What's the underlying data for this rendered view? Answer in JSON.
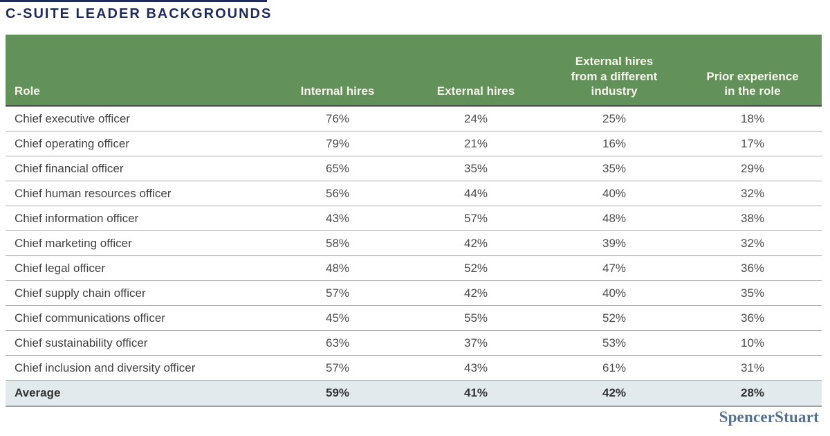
{
  "page_title": "C-SUITE LEADER BACKGROUNDS",
  "brand": {
    "logo_text": "SpencerStuart"
  },
  "colors": {
    "title_navy": "#1f2b5b",
    "header_bg": "#63915a",
    "header_text": "#f7f5ee",
    "average_row_bg": "#e3eaee",
    "row_border": "#a6aeae",
    "logo_color": "#54718e"
  },
  "chart_data": {
    "type": "table",
    "title": "C-SUITE LEADER BACKGROUNDS",
    "unit": "%",
    "columns": [
      "Role",
      "Internal hires",
      "External hires",
      "External hires from a different industry",
      "Prior experience in the role"
    ],
    "rows": [
      {
        "role": "Chief executive officer",
        "values": [
          76,
          24,
          25,
          18
        ]
      },
      {
        "role": "Chief operating officer",
        "values": [
          79,
          21,
          16,
          17
        ]
      },
      {
        "role": "Chief financial officer",
        "values": [
          65,
          35,
          35,
          29
        ]
      },
      {
        "role": "Chief human resources officer",
        "values": [
          56,
          44,
          40,
          32
        ]
      },
      {
        "role": "Chief information officer",
        "values": [
          43,
          57,
          48,
          38
        ]
      },
      {
        "role": "Chief marketing officer",
        "values": [
          58,
          42,
          39,
          32
        ]
      },
      {
        "role": "Chief legal officer",
        "values": [
          48,
          52,
          47,
          36
        ]
      },
      {
        "role": "Chief supply chain officer",
        "values": [
          57,
          42,
          40,
          35
        ]
      },
      {
        "role": "Chief communications officer",
        "values": [
          45,
          55,
          52,
          36
        ]
      },
      {
        "role": "Chief sustainability officer",
        "values": [
          63,
          37,
          53,
          10
        ]
      },
      {
        "role": "Chief inclusion and diversity officer",
        "values": [
          57,
          43,
          61,
          31
        ]
      }
    ],
    "average_row": {
      "role": "Average",
      "values": [
        59,
        41,
        42,
        28
      ]
    }
  }
}
